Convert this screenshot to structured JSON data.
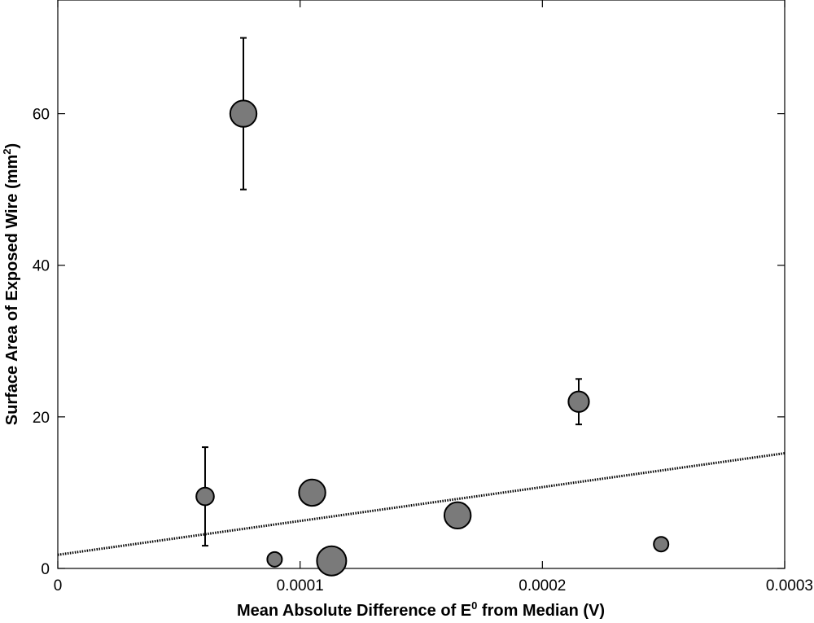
{
  "chart_data": {
    "type": "scatter",
    "xlabel_parts": {
      "before": "Mean Absolute Difference of E",
      "sup": "0",
      "after": " from Median (V)"
    },
    "ylabel_parts": {
      "before": "Surface Area of Exposed Wire (mm",
      "sup": "2",
      "after": ")"
    },
    "xlim": [
      0,
      0.0003
    ],
    "ylim": [
      0,
      75
    ],
    "xticks": [
      {
        "value": 0,
        "label": "0"
      },
      {
        "value": 0.0001,
        "label": "0.0001"
      },
      {
        "value": 0.0002,
        "label": "0.0002"
      },
      {
        "value": 0.0003,
        "label": "0.0003"
      }
    ],
    "yticks": [
      {
        "value": 0,
        "label": "0"
      },
      {
        "value": 20,
        "label": "20"
      },
      {
        "value": 40,
        "label": "40"
      },
      {
        "value": 60,
        "label": "60"
      }
    ],
    "grid": false,
    "points": [
      {
        "x": 6.08e-05,
        "y": 9.5,
        "yerr_low": 3,
        "yerr_high": 16,
        "relative_marker_size": 0.6
      },
      {
        "x": 7.66e-05,
        "y": 60,
        "yerr_low": 50,
        "yerr_high": 70,
        "relative_marker_size": 0.9
      },
      {
        "x": 8.95e-05,
        "y": 1.2,
        "relative_marker_size": 0.5
      },
      {
        "x": 0.000105,
        "y": 10,
        "relative_marker_size": 0.9
      },
      {
        "x": 0.000113,
        "y": 1,
        "relative_marker_size": 1.0
      },
      {
        "x": 0.000165,
        "y": 7,
        "relative_marker_size": 0.9
      },
      {
        "x": 0.000215,
        "y": 22,
        "yerr_low": 19,
        "yerr_high": 25,
        "relative_marker_size": 0.7
      },
      {
        "x": 0.000249,
        "y": 3.2,
        "relative_marker_size": 0.5
      }
    ],
    "trendline": {
      "style": "dotted",
      "x": [
        0,
        0.0003
      ],
      "y": [
        1.8,
        15.2
      ]
    },
    "marker_fill": "#7a7a7a",
    "marker_edge": "#000000"
  }
}
